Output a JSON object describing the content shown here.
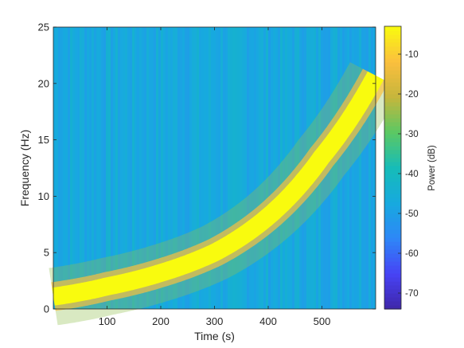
{
  "chart_data": {
    "type": "heatmap",
    "title": "",
    "xlabel": "Time (s)",
    "ylabel": "Frequency (Hz)",
    "xlim": [
      0,
      600
    ],
    "ylim": [
      0,
      25
    ],
    "x_ticks": [
      100,
      200,
      300,
      400,
      500
    ],
    "y_ticks": [
      0,
      5,
      10,
      15,
      20,
      25
    ],
    "colorbar": {
      "label": "Power (dB)",
      "range": [
        -74,
        -3
      ],
      "ticks": [
        -10,
        -20,
        -30,
        -40,
        -50,
        -60,
        -70
      ],
      "colormap": "parula",
      "colors": [
        "#3e26a8",
        "#4743f5",
        "#2e87f7",
        "#17a9df",
        "#16bcb8",
        "#5bc864",
        "#c5b63c",
        "#fbbf3e",
        "#f9fb0e"
      ]
    },
    "background_power_db": -47,
    "chirp_ridge": {
      "power_db": -3,
      "bandwidth_hz": 1.6,
      "points": [
        {
          "t": 0,
          "f": 1.1
        },
        {
          "t": 100,
          "f": 2.0
        },
        {
          "t": 200,
          "f": 3.2
        },
        {
          "t": 300,
          "f": 5.0
        },
        {
          "t": 400,
          "f": 8.2
        },
        {
          "t": 500,
          "f": 13.5
        },
        {
          "t": 600,
          "f": 20.7
        }
      ]
    }
  }
}
